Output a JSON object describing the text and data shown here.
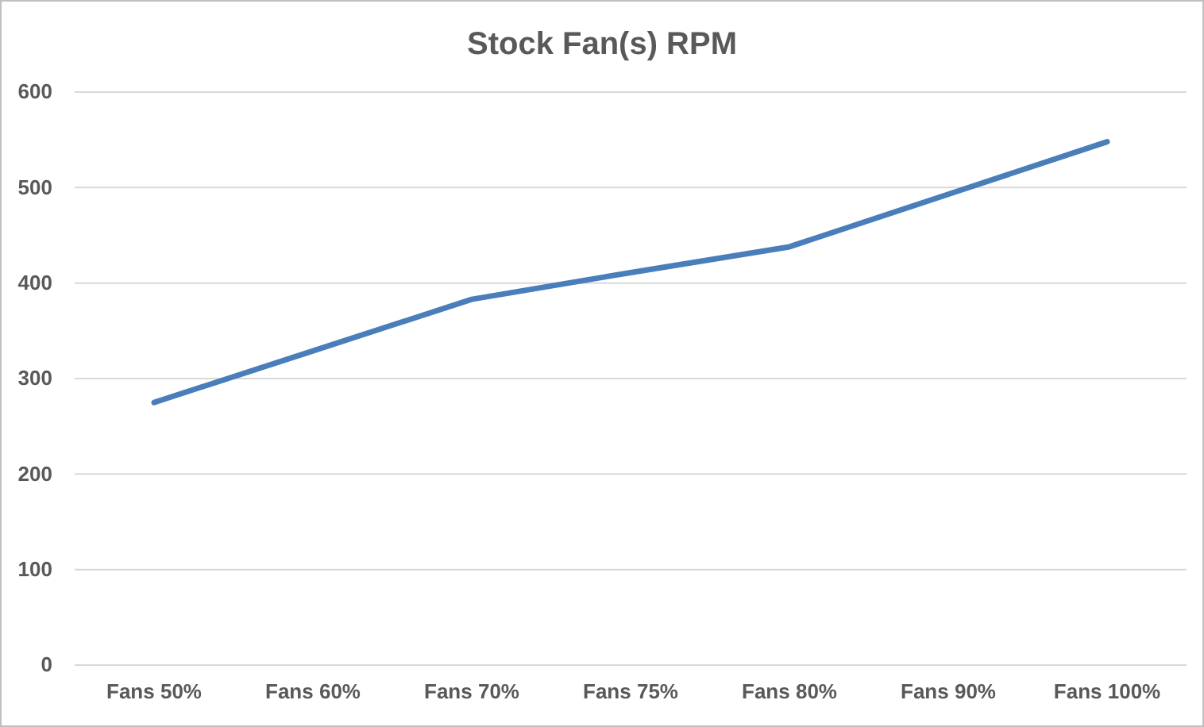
{
  "chart_data": {
    "type": "line",
    "title": "Stock Fan(s) RPM",
    "categories": [
      "Fans 50%",
      "Fans 60%",
      "Fans 70%",
      "Fans 75%",
      "Fans 80%",
      "Fans 90%",
      "Fans 100%"
    ],
    "series": [
      {
        "color": "#4a7ebb",
        "values": [
          275,
          329,
          383,
          411,
          438,
          493,
          548
        ]
      }
    ],
    "ylim": [
      0,
      600
    ],
    "yticks": [
      0,
      100,
      200,
      300,
      400,
      500,
      600
    ],
    "grid": "y",
    "marker": "none",
    "line_style": "solid"
  }
}
